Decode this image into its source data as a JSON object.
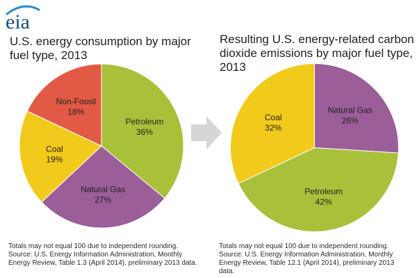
{
  "logo": {
    "text": "eia"
  },
  "colors": {
    "petroleum": "#A9C13A",
    "natural_gas": "#9B5E99",
    "coal": "#F2CA1B",
    "non_fossil": "#E25A45",
    "arrow": "#D6D6D6",
    "logo_arc": "#2E8BC8",
    "logo_text": "#1A4C7A"
  },
  "chart_data": [
    {
      "type": "pie",
      "title": "U.S. energy consumption by major\nfuel type, 2013",
      "slices": [
        {
          "label": "Petroleum",
          "value": 36,
          "display": "36%",
          "color": "#A9C13A"
        },
        {
          "label": "Natural Gas",
          "value": 27,
          "display": "27%",
          "color": "#9B5E99"
        },
        {
          "label": "Coal",
          "value": 19,
          "display": "19%",
          "color": "#F2CA1B"
        },
        {
          "label": "Non-Fossil",
          "value": 18,
          "display": "18%",
          "color": "#E25A45"
        }
      ],
      "start": "top, clockwise",
      "notes": [
        "Totals may not equal 100 due to independent rounding.",
        "Source: U.S. Energy Information Administration, Monthly",
        "Energy Review, Table 1.3 (April 2014), preliminary 2013 data."
      ]
    },
    {
      "type": "pie",
      "title": "Resulting U.S. energy-related carbon\ndioxide emissions by major fuel type,\n2013",
      "slices": [
        {
          "label": "Natural Gas",
          "value": 26,
          "display": "26%",
          "color": "#9B5E99"
        },
        {
          "label": "Petroleum",
          "value": 42,
          "display": "42%",
          "color": "#A9C13A"
        },
        {
          "label": "Coal",
          "value": 32,
          "display": "32%",
          "color": "#F2CA1B"
        }
      ],
      "start": "top, clockwise",
      "notes": [
        "Totals may not equal 100 due to independent rounding.",
        "Source: U.S. Energy Information Administration, Monthly",
        "Energy Review, Table 12.1 (April 2014), preliminary 2013",
        "data."
      ]
    }
  ]
}
